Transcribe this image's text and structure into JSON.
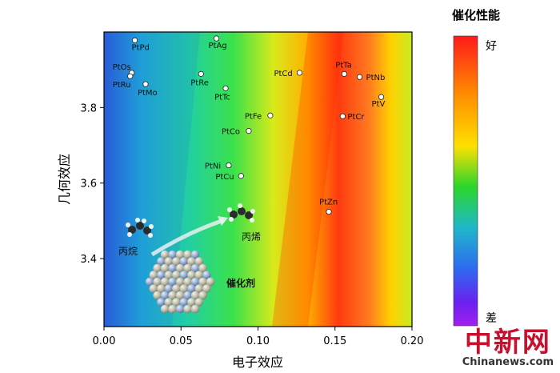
{
  "chart_data": {
    "type": "scatter",
    "xlabel": "电子效应",
    "ylabel": "几何效应",
    "xlim": [
      0.0,
      0.2
    ],
    "ylim": [
      3.22,
      4.0
    ],
    "x_ticks": [
      "0.00",
      "0.05",
      "0.10",
      "0.15",
      "0.20"
    ],
    "y_ticks": [
      "3.4",
      "3.6",
      "3.8"
    ],
    "colorbar": {
      "title": "催化性能",
      "top_label": "好",
      "bottom_label": "差",
      "colors": [
        "#ff1a1a",
        "#ff8c00",
        "#ffe000",
        "#2bd62b",
        "#1fb8c8",
        "#2d6cf0",
        "#6a20f0",
        "#a020f0"
      ]
    },
    "points": [
      {
        "label": "PtPd",
        "x": 0.02,
        "y": 3.978
      },
      {
        "label": "PtAg",
        "x": 0.073,
        "y": 3.983
      },
      {
        "label": "PtOs",
        "x": 0.018,
        "y": 3.892
      },
      {
        "label": "PtRu",
        "x": 0.017,
        "y": 3.883
      },
      {
        "label": "PtMo",
        "x": 0.027,
        "y": 3.862
      },
      {
        "label": "PtRe",
        "x": 0.063,
        "y": 3.889
      },
      {
        "label": "PtTc",
        "x": 0.079,
        "y": 3.851
      },
      {
        "label": "PtCd",
        "x": 0.127,
        "y": 3.892
      },
      {
        "label": "PtTa",
        "x": 0.156,
        "y": 3.889
      },
      {
        "label": "PtNb",
        "x": 0.166,
        "y": 3.881
      },
      {
        "label": "PtV",
        "x": 0.18,
        "y": 3.828
      },
      {
        "label": "PtFe",
        "x": 0.108,
        "y": 3.779
      },
      {
        "label": "PtCr",
        "x": 0.155,
        "y": 3.777
      },
      {
        "label": "PtCo",
        "x": 0.094,
        "y": 3.738
      },
      {
        "label": "PtNi",
        "x": 0.081,
        "y": 3.647
      },
      {
        "label": "PtCu",
        "x": 0.089,
        "y": 3.619
      },
      {
        "label": "PtZn",
        "x": 0.146,
        "y": 3.524
      }
    ],
    "annotations": {
      "reactant": "丙烷",
      "product": "丙烯",
      "catalyst": "催化剂"
    }
  },
  "watermark": {
    "top": "中新网",
    "bottom": "Chinanews.com"
  }
}
